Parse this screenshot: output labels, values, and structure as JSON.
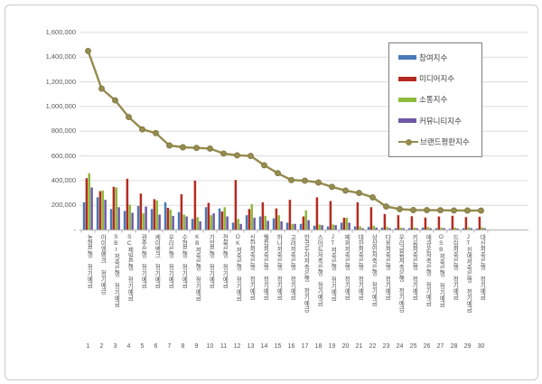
{
  "chart_data": {
    "type": "bar+line combo",
    "title": "",
    "categories": [
      "농협은행 정기예금",
      "아이엠뱅크 정기예금",
      "SBI저축은행 정기예금",
      "SC제일은행 정기예금",
      "광주은행 정기예금",
      "케이뱅크 정기예금",
      "우리은행 정기예금",
      "수협은행 정기예금",
      "KB저축은행 정기예금",
      "기업은행 정기예금",
      "전북은행 정기예금",
      "OK저축은행 정기예금",
      "신한저축은행 정기예금",
      "웰컴저축은행 정기예금",
      "하나저축은행 정기예금",
      "고려저축은행 정기예금",
      "한국투자저축은행 정기예금",
      "스마트저축은행 정기예금",
      "JT저축은행 정기예금",
      "페퍼저축은행 정기예금",
      "대한저축은행 정기예금",
      "상상인저축은행 정기예금",
      "다올저축은행 정기예금",
      "우리금융저축은행 정기예금",
      "키움저축은행 정기예금",
      "애큐온저축은행 정기예금",
      "OSB저축은행 정기예금",
      "드림저축은행 정기예금",
      "JT친애저축은행 정기예금",
      "대신저축은행 정기예금"
    ],
    "rank_labels": [
      "1",
      "2",
      "3",
      "4",
      "5",
      "6",
      "7",
      "8",
      "9",
      "10",
      "11",
      "12",
      "13",
      "14",
      "15",
      "16",
      "17",
      "18",
      "19",
      "20",
      "21",
      "22",
      "23",
      "24",
      "25",
      "26",
      "27",
      "28",
      "29",
      "30"
    ],
    "series": [
      {
        "name": "참여지수",
        "type": "bar",
        "color": "#4a79b6",
        "values": [
          225000,
          265000,
          170000,
          155000,
          195000,
          170000,
          225000,
          145000,
          90000,
          185000,
          175000,
          60000,
          120000,
          110000,
          95000,
          60000,
          50000,
          35000,
          30000,
          60000,
          30000,
          25000,
          20000,
          15000,
          15000,
          20000,
          15000,
          10000,
          15000,
          12000
        ]
      },
      {
        "name": "미디어지수",
        "type": "bar",
        "color": "#b52a20",
        "values": [
          420000,
          315000,
          350000,
          415000,
          295000,
          250000,
          180000,
          290000,
          400000,
          220000,
          150000,
          405000,
          170000,
          225000,
          175000,
          245000,
          110000,
          265000,
          235000,
          100000,
          225000,
          185000,
          130000,
          120000,
          112000,
          101000,
          110000,
          116000,
          105000,
          108000
        ]
      },
      {
        "name": "소통지수",
        "type": "bar",
        "color": "#8dbb3c",
        "values": [
          460000,
          320000,
          345000,
          205000,
          135000,
          240000,
          165000,
          125000,
          105000,
          120000,
          185000,
          90000,
          210000,
          115000,
          120000,
          50000,
          160000,
          45000,
          45000,
          100000,
          30000,
          35000,
          25000,
          20000,
          20000,
          25000,
          20000,
          20000,
          22000,
          22000
        ]
      },
      {
        "name": "커뮤니티지수",
        "type": "bar",
        "color": "#6f58a6",
        "values": [
          345000,
          245000,
          185000,
          140000,
          190000,
          125000,
          115000,
          110000,
          70000,
          135000,
          110000,
          50000,
          100000,
          75000,
          70000,
          50000,
          80000,
          40000,
          40000,
          60000,
          15000,
          20000,
          15000,
          15000,
          15000,
          15000,
          15000,
          13000,
          16000,
          15000
        ]
      },
      {
        "name": "브랜드평판지수",
        "type": "line",
        "color": "#948b4e",
        "values": [
          1450000,
          1145000,
          1050000,
          915000,
          815000,
          785000,
          685000,
          670000,
          665000,
          660000,
          620000,
          605000,
          600000,
          525000,
          460000,
          405000,
          400000,
          385000,
          350000,
          320000,
          300000,
          265000,
          190000,
          170000,
          162000,
          161000,
          160000,
          159000,
          158000,
          157000
        ]
      }
    ],
    "ylim": [
      0,
      1600000
    ],
    "ytick_step": 200000,
    "ytick_labels": [
      "1,600,000",
      "1,400,000",
      "1,200,000",
      "1,000,000",
      "800,000",
      "600,000",
      "400,000",
      "200,000",
      "-"
    ],
    "grid": true,
    "legend_position": "top-right"
  },
  "colors": {
    "gridline": "#dcdcdc",
    "axis": "#b3b3b3",
    "marker_edge": "#7e7540",
    "card_border": "#c9c9c9"
  }
}
